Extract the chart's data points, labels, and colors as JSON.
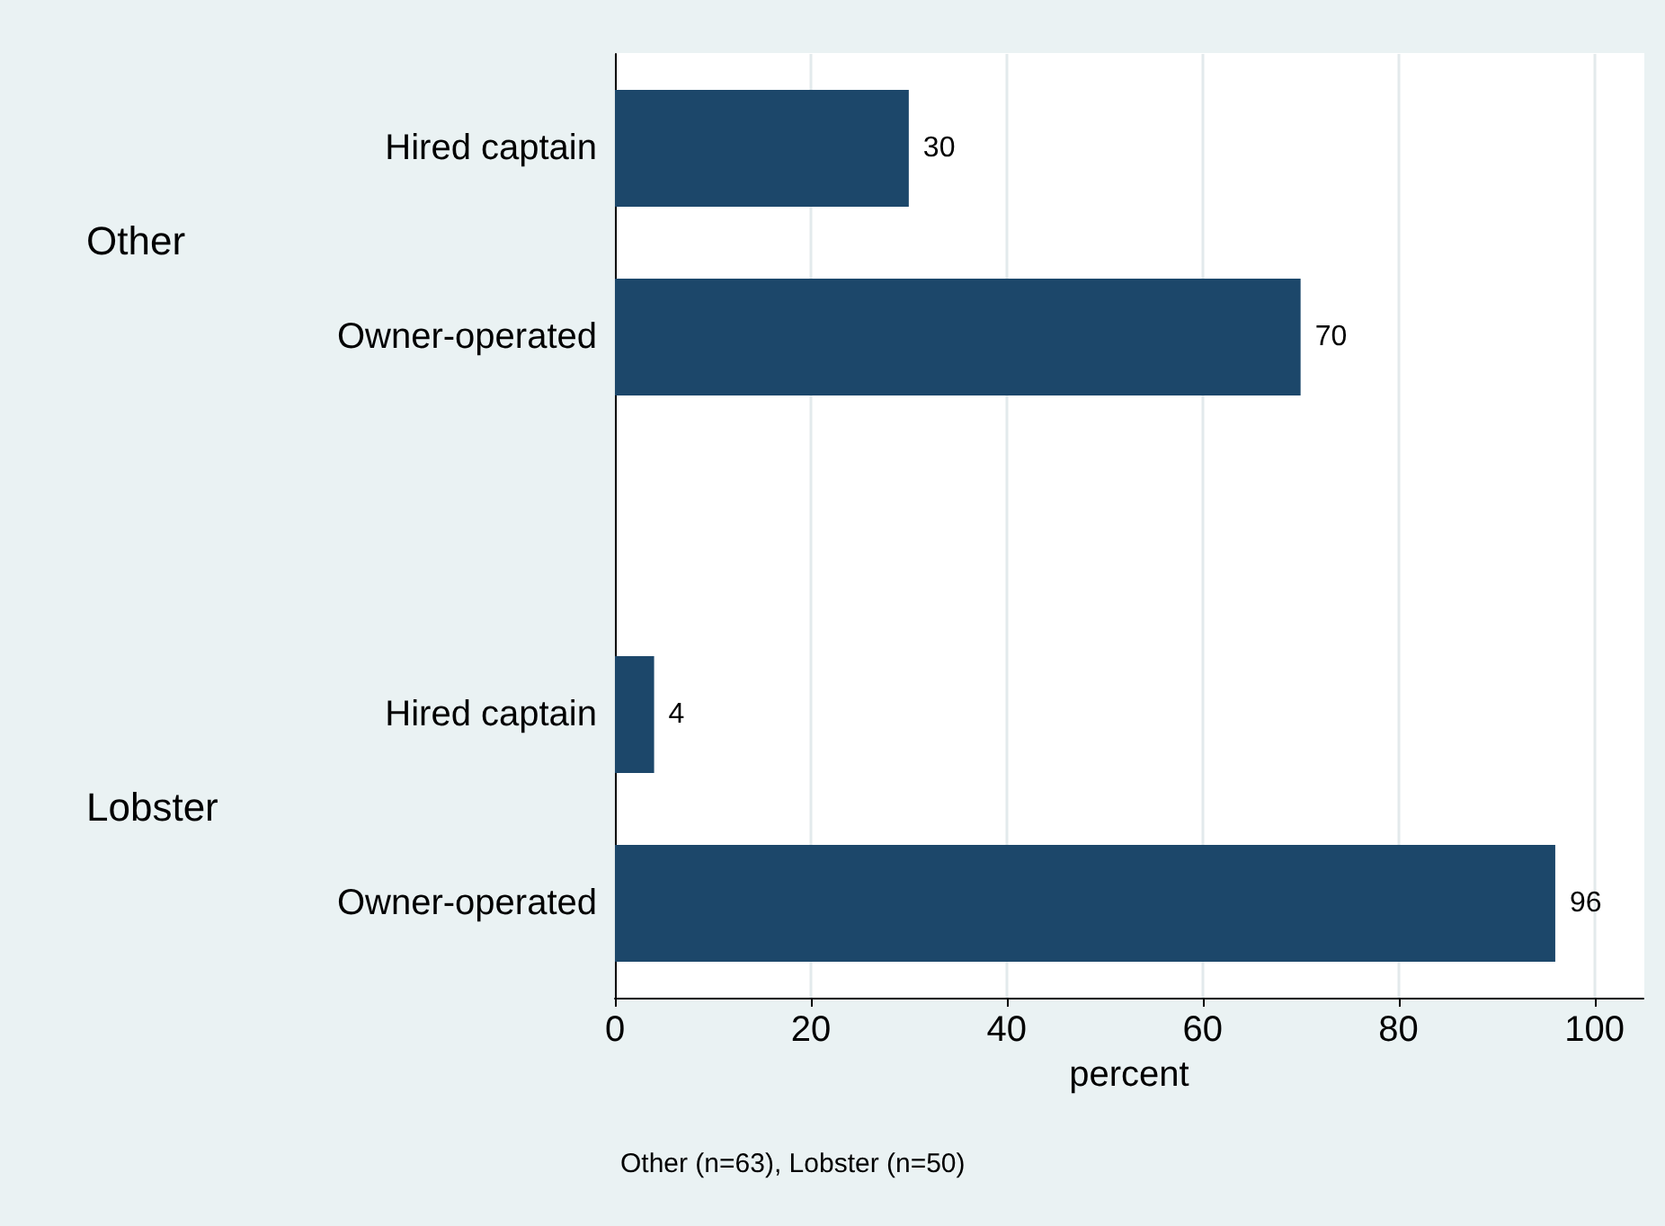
{
  "chart_data": {
    "type": "bar",
    "orientation": "horizontal",
    "xlabel": "percent",
    "categories": [
      "Hired captain",
      "Owner-operated",
      null,
      "Hired captain",
      "Owner-operated"
    ],
    "values": [
      30,
      70,
      null,
      4,
      96
    ],
    "color": "#1c476a",
    "data_labels": true,
    "xlim": [
      0,
      105
    ],
    "xticks": [
      0,
      20,
      40,
      60,
      80,
      100
    ],
    "grid": "x",
    "annotations": [
      "Other",
      "Lobster",
      "Other (n=63), Lobster (n=50)"
    ]
  }
}
